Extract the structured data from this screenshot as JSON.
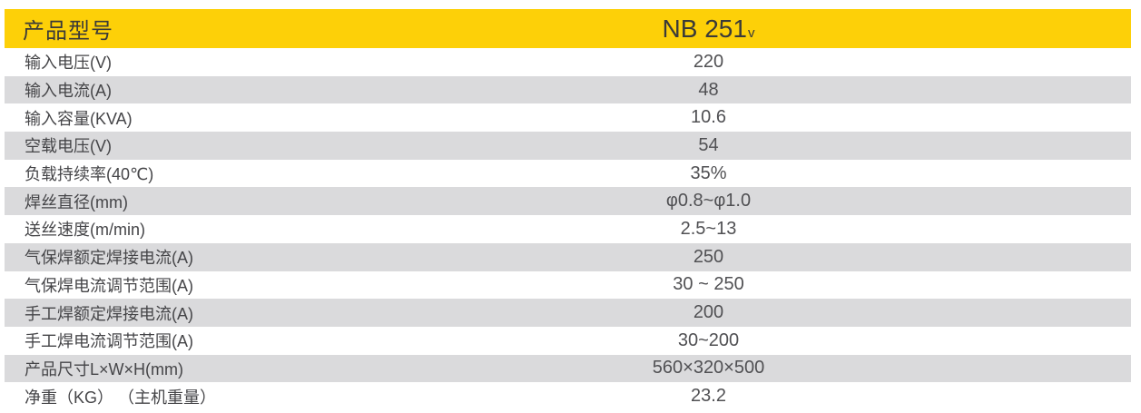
{
  "table": {
    "header": {
      "label": "产品型号",
      "model": "NB 251",
      "model_suffix": "v"
    },
    "rows": [
      {
        "label": "输入电压(V)",
        "value": "220"
      },
      {
        "label": "输入电流(A)",
        "value": "48"
      },
      {
        "label": "输入容量(KVA)",
        "value": "10.6"
      },
      {
        "label": "空载电压(V)",
        "value": "54"
      },
      {
        "label": "负载持续率(40℃)",
        "value": "35%"
      },
      {
        "label": "焊丝直径(mm)",
        "value": "φ0.8~φ1.0"
      },
      {
        "label": "送丝速度(m/min)",
        "value": "2.5~13"
      },
      {
        "label": "气保焊额定焊接电流(A)",
        "value": "250"
      },
      {
        "label": "气保焊电流调节范围(A)",
        "value": "30 ~ 250"
      },
      {
        "label": "手工焊额定焊接电流(A)",
        "value": "200"
      },
      {
        "label": "手工焊电流调节范围(A)",
        "value": "30~200"
      },
      {
        "label": "产品尺寸L×W×H(mm)",
        "value": "560×320×500"
      },
      {
        "label": "净重（KG） （主机重量）",
        "value": "23.2"
      }
    ],
    "colors": {
      "header_bg": "#FDD008",
      "row_alt_bg": "#DADADC",
      "header_text": "#3A3A39",
      "body_text": "#454548"
    }
  }
}
